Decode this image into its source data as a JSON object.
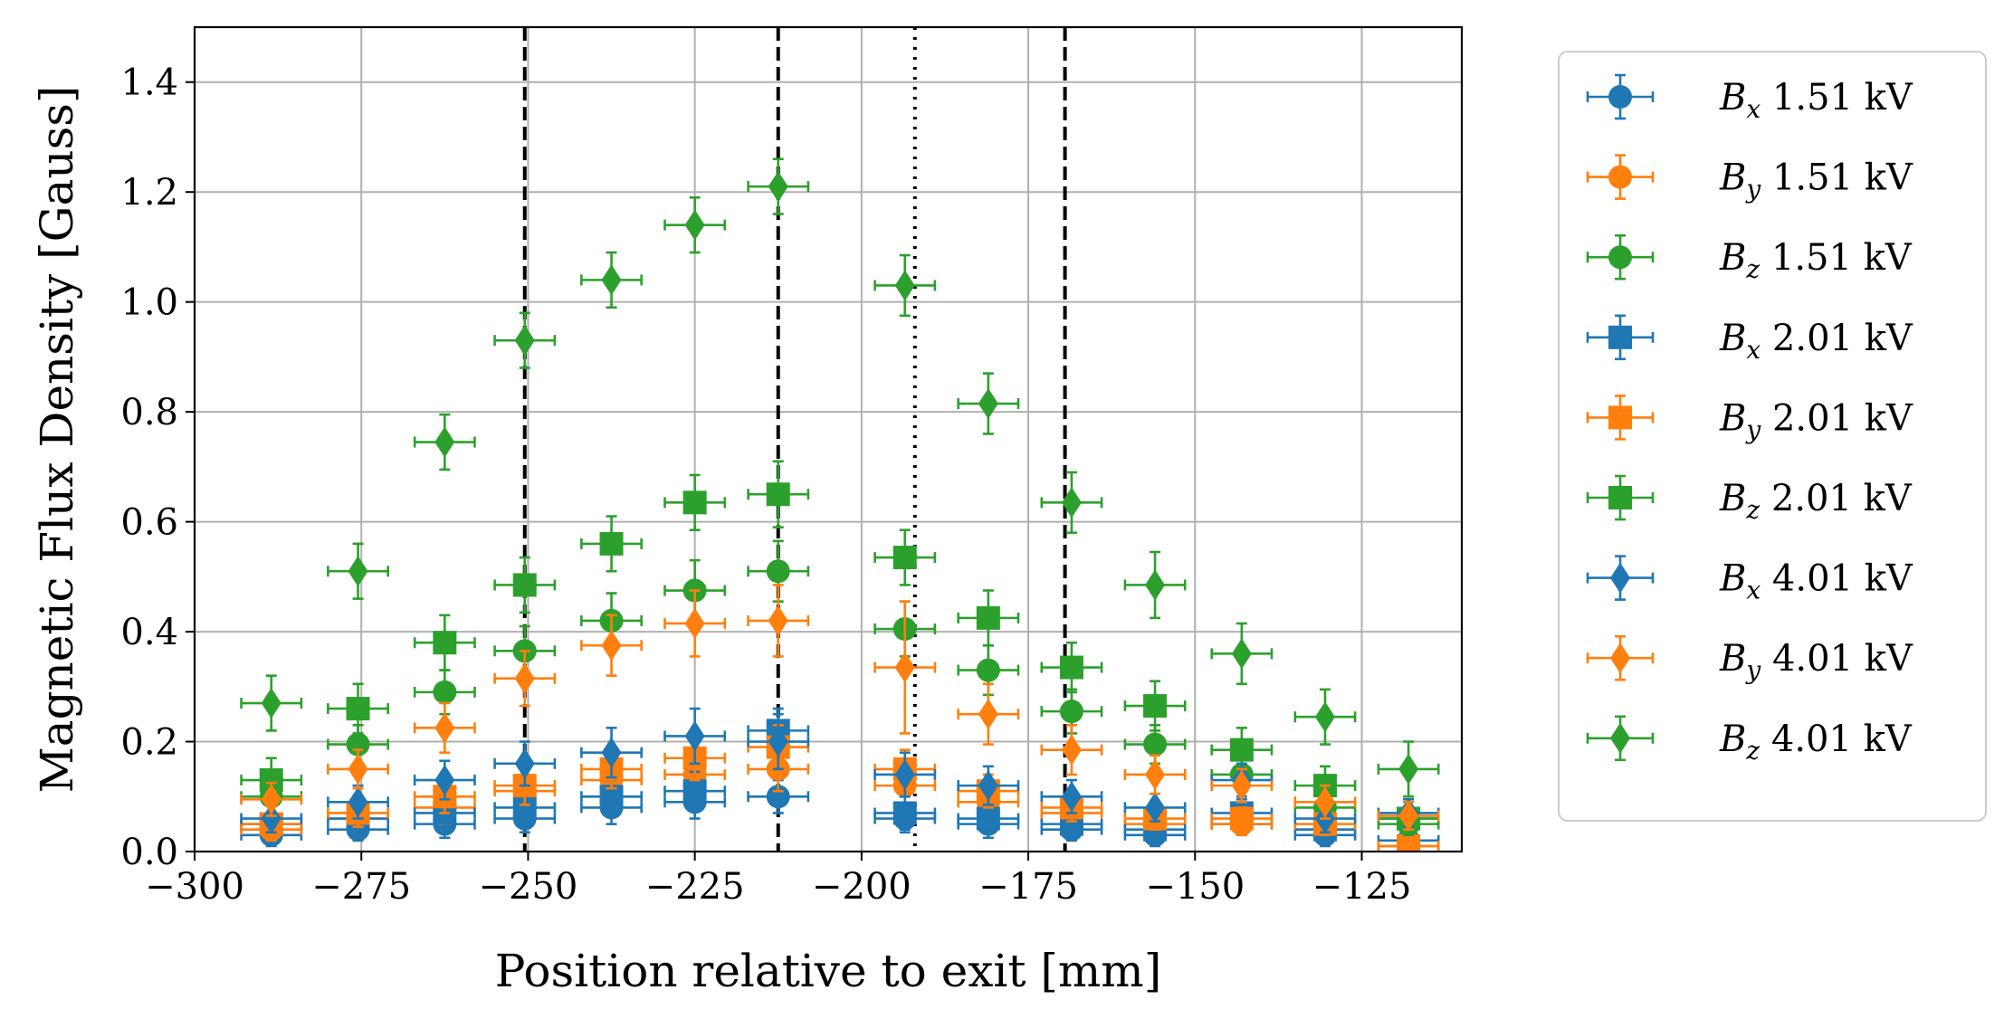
{
  "chart_data": {
    "type": "scatter",
    "title": "",
    "xlabel": "Position relative to exit [mm]",
    "ylabel": "Magnetic Flux Density [Gauss]",
    "xlim": [
      -300,
      -110
    ],
    "ylim": [
      0.0,
      1.5
    ],
    "xticks": [
      -300,
      -275,
      -250,
      -225,
      -200,
      -175,
      -150,
      -125
    ],
    "xtick_labels": [
      "−300",
      "−275",
      "−250",
      "−225",
      "−200",
      "−175",
      "−150",
      "−125"
    ],
    "yticks": [
      0.0,
      0.2,
      0.4,
      0.6,
      0.8,
      1.0,
      1.2,
      1.4
    ],
    "ytick_labels": [
      "0.0",
      "0.2",
      "0.4",
      "0.6",
      "0.8",
      "1.0",
      "1.2",
      "1.4"
    ],
    "grid": true,
    "legend_position": "outside-right",
    "vlines": [
      {
        "x": -250.5,
        "style": "dashed"
      },
      {
        "x": -212.5,
        "style": "dashed"
      },
      {
        "x": -192,
        "style": "dotted"
      },
      {
        "x": -169.5,
        "style": "dashed"
      }
    ],
    "x_error": 4.5,
    "series": [
      {
        "name": "Bx 1.51 kV",
        "component": "B",
        "subscript": "x",
        "voltage": "1.51 kV",
        "color": "#1f77b4",
        "marker": "circle",
        "x": [
          -288.5,
          -275.5,
          -262.5,
          -250.5,
          -237.5,
          -225,
          -212.5,
          -193.5,
          -181,
          -168.5,
          -156,
          -143,
          -130.5,
          -118
        ],
        "y": [
          0.03,
          0.04,
          0.05,
          0.06,
          0.08,
          0.09,
          0.1,
          0.06,
          0.05,
          0.04,
          0.03,
          0.05,
          0.03,
          0.02
        ],
        "err": [
          0.02,
          0.02,
          0.025,
          0.025,
          0.03,
          0.03,
          0.03,
          0.025,
          0.025,
          0.02,
          0.02,
          0.02,
          0.02,
          0.02
        ]
      },
      {
        "name": "By 1.51 kV",
        "component": "B",
        "subscript": "y",
        "voltage": "1.51 kV",
        "color": "#ff7f0e",
        "marker": "circle",
        "x": [
          -288.5,
          -275.5,
          -262.5,
          -250.5,
          -237.5,
          -225,
          -212.5,
          -193.5,
          -181,
          -168.5,
          -156,
          -143,
          -130.5,
          -118
        ],
        "y": [
          0.04,
          0.06,
          0.08,
          0.11,
          0.13,
          0.14,
          0.15,
          0.12,
          0.09,
          0.07,
          0.05,
          0.05,
          0.04,
          0.01
        ],
        "err": [
          0.02,
          0.025,
          0.03,
          0.03,
          0.035,
          0.035,
          0.04,
          0.035,
          0.03,
          0.025,
          0.02,
          0.02,
          0.02,
          0.015
        ]
      },
      {
        "name": "Bz 1.51 kV",
        "component": "B",
        "subscript": "z",
        "voltage": "1.51 kV",
        "color": "#2ca02c",
        "marker": "circle",
        "x": [
          -288.5,
          -275.5,
          -262.5,
          -250.5,
          -237.5,
          -225,
          -212.5,
          -193.5,
          -181,
          -168.5,
          -156,
          -143,
          -130.5,
          -118
        ],
        "y": [
          0.1,
          0.195,
          0.29,
          0.365,
          0.42,
          0.475,
          0.51,
          0.405,
          0.33,
          0.255,
          0.195,
          0.14,
          0.08,
          0.05
        ],
        "err": [
          0.03,
          0.035,
          0.04,
          0.045,
          0.05,
          0.055,
          0.055,
          0.05,
          0.045,
          0.04,
          0.035,
          0.03,
          0.025,
          0.02
        ]
      },
      {
        "name": "Bx 2.01 kV",
        "component": "B",
        "subscript": "x",
        "voltage": "2.01 kV",
        "color": "#1f77b4",
        "marker": "square",
        "x": [
          -288.5,
          -275.5,
          -262.5,
          -250.5,
          -237.5,
          -225,
          -212.5,
          -193.5,
          -181,
          -168.5,
          -156,
          -143,
          -130.5,
          -118
        ],
        "y": [
          0.05,
          0.06,
          0.07,
          0.08,
          0.1,
          0.11,
          0.22,
          0.07,
          0.06,
          0.05,
          0.04,
          0.07,
          0.04,
          0.06
        ],
        "err": [
          0.02,
          0.025,
          0.025,
          0.03,
          0.03,
          0.035,
          0.04,
          0.03,
          0.025,
          0.025,
          0.02,
          0.025,
          0.02,
          0.02
        ]
      },
      {
        "name": "By 2.01 kV",
        "component": "B",
        "subscript": "y",
        "voltage": "2.01 kV",
        "color": "#ff7f0e",
        "marker": "square",
        "x": [
          -288.5,
          -275.5,
          -262.5,
          -250.5,
          -237.5,
          -225,
          -212.5,
          -193.5,
          -181,
          -168.5,
          -156,
          -143,
          -130.5,
          -118
        ],
        "y": [
          0.05,
          0.07,
          0.1,
          0.12,
          0.15,
          0.17,
          0.19,
          0.15,
          0.11,
          0.08,
          0.06,
          0.06,
          0.05,
          0.01
        ],
        "err": [
          0.02,
          0.025,
          0.03,
          0.035,
          0.035,
          0.04,
          0.04,
          0.035,
          0.03,
          0.025,
          0.02,
          0.02,
          0.02,
          0.015
        ]
      },
      {
        "name": "Bz 2.01 kV",
        "component": "B",
        "subscript": "z",
        "voltage": "2.01 kV",
        "color": "#2ca02c",
        "marker": "square",
        "x": [
          -288.5,
          -275.5,
          -262.5,
          -250.5,
          -237.5,
          -225,
          -212.5,
          -193.5,
          -181,
          -168.5,
          -156,
          -143,
          -130.5,
          -118
        ],
        "y": [
          0.13,
          0.26,
          0.38,
          0.485,
          0.56,
          0.635,
          0.65,
          0.535,
          0.425,
          0.335,
          0.265,
          0.185,
          0.12,
          0.06
        ],
        "err": [
          0.04,
          0.045,
          0.05,
          0.05,
          0.05,
          0.05,
          0.06,
          0.05,
          0.05,
          0.045,
          0.045,
          0.04,
          0.035,
          0.03
        ]
      },
      {
        "name": "Bx 4.01 kV",
        "component": "B",
        "subscript": "x",
        "voltage": "4.01 kV",
        "color": "#1f77b4",
        "marker": "diamond",
        "x": [
          -288.5,
          -275.5,
          -262.5,
          -250.5,
          -237.5,
          -225,
          -212.5,
          -193.5,
          -181,
          -168.5,
          -156,
          -143,
          -130.5,
          -118
        ],
        "y": [
          0.06,
          0.09,
          0.13,
          0.16,
          0.18,
          0.21,
          0.2,
          0.14,
          0.12,
          0.1,
          0.08,
          0.13,
          0.06,
          0.07
        ],
        "err": [
          0.025,
          0.03,
          0.035,
          0.04,
          0.045,
          0.05,
          0.05,
          0.04,
          0.035,
          0.03,
          0.025,
          0.03,
          0.025,
          0.025
        ]
      },
      {
        "name": "By 4.01 kV",
        "component": "B",
        "subscript": "y",
        "voltage": "4.01 kV",
        "color": "#ff7f0e",
        "marker": "diamond",
        "x": [
          -288.5,
          -275.5,
          -262.5,
          -250.5,
          -237.5,
          -225,
          -212.5,
          -193.5,
          -181,
          -168.5,
          -156,
          -143,
          -130.5,
          -118
        ],
        "y": [
          0.095,
          0.15,
          0.225,
          0.315,
          0.375,
          0.415,
          0.42,
          0.335,
          0.25,
          0.185,
          0.14,
          0.12,
          0.09,
          0.065
        ],
        "err": [
          0.03,
          0.035,
          0.045,
          0.05,
          0.055,
          0.06,
          0.065,
          0.12,
          0.055,
          0.045,
          0.035,
          0.03,
          0.03,
          0.025
        ]
      },
      {
        "name": "Bz 4.01 kV",
        "component": "B",
        "subscript": "z",
        "voltage": "4.01 kV",
        "color": "#2ca02c",
        "marker": "diamond",
        "x": [
          -288.5,
          -275.5,
          -262.5,
          -250.5,
          -237.5,
          -225,
          -212.5,
          -193.5,
          -181,
          -168.5,
          -156,
          -143,
          -130.5,
          -118
        ],
        "y": [
          0.27,
          0.51,
          0.745,
          0.93,
          1.04,
          1.14,
          1.21,
          1.03,
          0.815,
          0.635,
          0.485,
          0.36,
          0.245,
          0.15
        ],
        "err": [
          0.05,
          0.05,
          0.05,
          0.05,
          0.05,
          0.05,
          0.05,
          0.055,
          0.055,
          0.055,
          0.06,
          0.055,
          0.05,
          0.05
        ]
      }
    ]
  }
}
